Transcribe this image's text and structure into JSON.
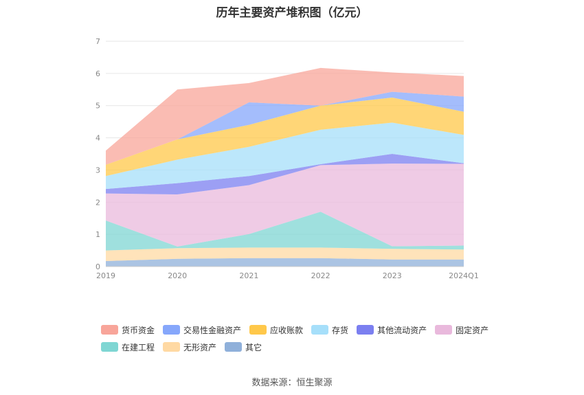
{
  "title": "历年主要资产堆积图（亿元）",
  "source": "数据来源：恒生聚源",
  "chart_data": {
    "type": "area",
    "stacked": true,
    "categories": [
      "2019",
      "2020",
      "2021",
      "2022",
      "2023",
      "2024Q1"
    ],
    "yticks": [
      "0",
      "1",
      "2",
      "3",
      "4",
      "5",
      "6",
      "7"
    ],
    "ylim": [
      0,
      7
    ],
    "grid": true,
    "legend_position": "bottom",
    "series": [
      {
        "name": "其它",
        "color": "#8fb0da",
        "values": [
          0.17,
          0.24,
          0.26,
          0.26,
          0.22,
          0.22
        ]
      },
      {
        "name": "无形资产",
        "color": "#ffd9a3",
        "values": [
          0.33,
          0.33,
          0.33,
          0.33,
          0.33,
          0.31
        ]
      },
      {
        "name": "在建工程",
        "color": "#7fd6d3",
        "values": [
          0.93,
          0.05,
          0.42,
          1.11,
          0.08,
          0.12
        ]
      },
      {
        "name": "固定资产",
        "color": "#e9b9dc",
        "values": [
          0.84,
          1.62,
          1.52,
          1.45,
          2.57,
          2.54
        ]
      },
      {
        "name": "其他流动资产",
        "color": "#7b7ff0",
        "values": [
          0.14,
          0.35,
          0.28,
          0.03,
          0.3,
          0.02
        ]
      },
      {
        "name": "存货",
        "color": "#a6dffa",
        "values": [
          0.4,
          0.73,
          0.91,
          1.07,
          0.97,
          0.88
        ]
      },
      {
        "name": "应收账款",
        "color": "#ffc84a",
        "values": [
          0.35,
          0.63,
          0.68,
          0.75,
          0.78,
          0.72
        ]
      },
      {
        "name": "交易性金融资产",
        "color": "#86a7fb",
        "values": [
          0.0,
          0.0,
          0.7,
          0.0,
          0.18,
          0.47
        ]
      },
      {
        "name": "货币资金",
        "color": "#f8a59a",
        "values": [
          0.44,
          1.55,
          0.6,
          1.17,
          0.6,
          0.64
        ]
      }
    ]
  },
  "legend_order": [
    "货币资金",
    "交易性金融资产",
    "应收账款",
    "存货",
    "其他流动资产",
    "固定资产",
    "在建工程",
    "无形资产",
    "其它"
  ]
}
